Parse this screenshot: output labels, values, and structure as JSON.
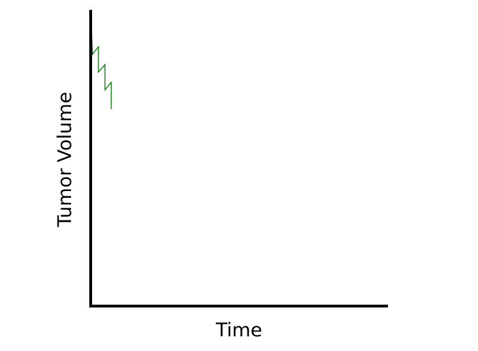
{
  "chart_data": {
    "type": "line",
    "title": "",
    "xlabel": "Time",
    "ylabel": "Tumor Volume",
    "xlim": [
      0,
      100
    ],
    "ylim": [
      0,
      100
    ],
    "grid": false,
    "legend": "none",
    "series": [
      {
        "name": "tumor-volume",
        "color": "#008000",
        "x": [
          0,
          0.6,
          2.6,
          2.6,
          4.8,
          4.8,
          6.9,
          6.9
        ],
        "y": [
          100,
          85,
          87.5,
          79,
          81.5,
          73,
          75.5,
          66.5
        ]
      }
    ]
  }
}
